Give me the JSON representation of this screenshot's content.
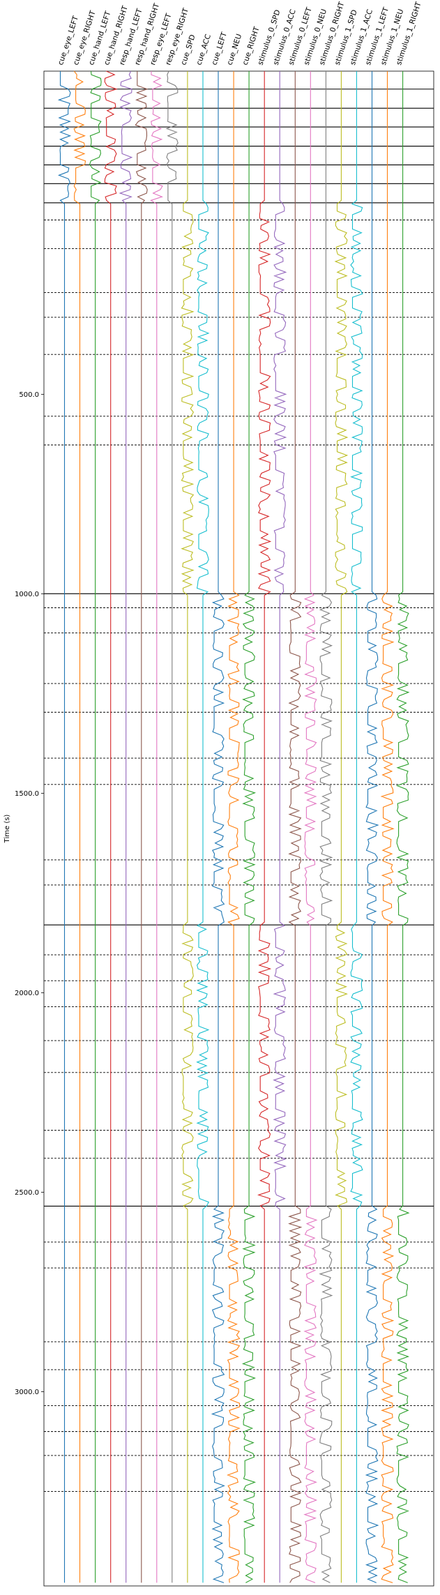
{
  "chart_data": {
    "type": "line",
    "title": "",
    "xlabel": "",
    "ylabel": "Time (s)",
    "ylim": [
      3487,
      -310
    ],
    "y_ticks": [
      500.0,
      1000.0,
      1500.0,
      2000.0,
      2500.0,
      3000.0
    ],
    "y_tick_labels": [
      "500.0",
      "1000.0",
      "1500.0",
      "2000.0",
      "2500.0",
      "3000.0"
    ],
    "grid": false,
    "series": [
      {
        "name": "cue_eye_LEFT",
        "color": "#1f77b4"
      },
      {
        "name": "cue_eye_RIGHT",
        "color": "#ff7f0e"
      },
      {
        "name": "cue_hand_LEFT",
        "color": "#2ca02c"
      },
      {
        "name": "cue_hand_RIGHT",
        "color": "#d62728"
      },
      {
        "name": "resp_hand_LEFT",
        "color": "#9467bd"
      },
      {
        "name": "resp_hand_RIGHT",
        "color": "#8c564b"
      },
      {
        "name": "resp_eye_LEFT",
        "color": "#e377c2"
      },
      {
        "name": "resp_eye_RIGHT",
        "color": "#7f7f7f"
      },
      {
        "name": "cue_SPD",
        "color": "#bcbd22"
      },
      {
        "name": "cue_ACC",
        "color": "#17becf"
      },
      {
        "name": "cue_LEFT",
        "color": "#1f77b4"
      },
      {
        "name": "cue_NEU",
        "color": "#ff7f0e"
      },
      {
        "name": "cue_RIGHT",
        "color": "#2ca02c"
      },
      {
        "name": "stimulus_0_SPD",
        "color": "#d62728"
      },
      {
        "name": "stimulus_0_ACC",
        "color": "#9467bd"
      },
      {
        "name": "stimulus_0_LEFT",
        "color": "#8c564b"
      },
      {
        "name": "stimulus_0_NEU",
        "color": "#e377c2"
      },
      {
        "name": "stimulus_0_RIGHT",
        "color": "#7f7f7f"
      },
      {
        "name": "stimulus_1_SPD",
        "color": "#bcbd22"
      },
      {
        "name": "stimulus_1_ACC",
        "color": "#17becf"
      },
      {
        "name": "stimulus_1_LEFT",
        "color": "#1f77b4"
      },
      {
        "name": "stimulus_1_NEU",
        "color": "#ff7f0e"
      },
      {
        "name": "stimulus_1_RIGHT",
        "color": "#2ca02c"
      }
    ],
    "run_boundaries_solid": [
      -265,
      -217,
      -170,
      -122,
      -75,
      -28,
      20,
      1000,
      1830,
      2535
    ],
    "session_boundaries_dashed": [
      63,
      135,
      245,
      307,
      400,
      555,
      627,
      1035,
      1098,
      1225,
      1297,
      1412,
      1478,
      1667,
      1730,
      1905,
      1970,
      2035,
      2120,
      2200,
      2345,
      2415,
      2625,
      2690,
      2875,
      2945,
      3035,
      3100,
      3160,
      3250
    ],
    "active_segments": [
      {
        "series": [
          0,
          1,
          2,
          3,
          4,
          5,
          6,
          7
        ],
        "start": -310,
        "end": 20
      },
      {
        "series": [
          8,
          9,
          13,
          14,
          18,
          19
        ],
        "start": 20,
        "end": 1000
      },
      {
        "series": [
          10,
          11,
          12,
          15,
          16,
          17,
          20,
          21,
          22
        ],
        "start": 1000,
        "end": 1830
      },
      {
        "series": [
          8,
          9,
          13,
          14,
          18,
          19
        ],
        "start": 1830,
        "end": 2535
      },
      {
        "series": [
          10,
          11,
          12,
          15,
          16,
          17,
          20,
          21,
          22
        ],
        "start": 2535,
        "end": 3487
      }
    ]
  }
}
